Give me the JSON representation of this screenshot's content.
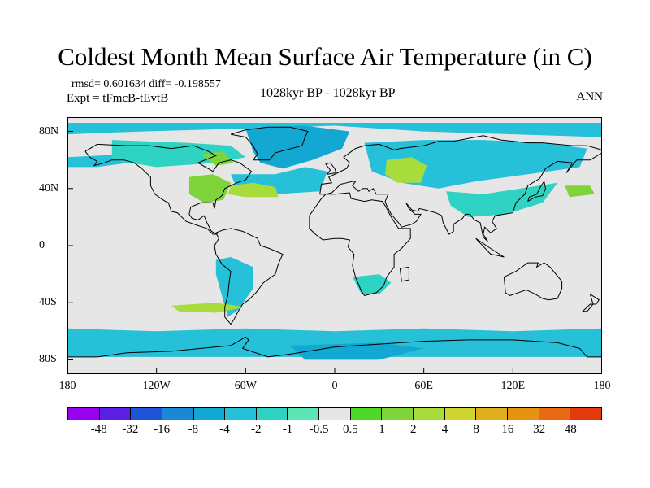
{
  "figure": {
    "title": "Coldest Month Mean Surface Air Temperature (in C)",
    "stats": "rmsd= 0.601634 diff= -0.198557",
    "experiment": "Expt = tFmcB-tEvtB",
    "period": "1028kyr BP - 1028kyr BP",
    "season": "ANN"
  },
  "map": {
    "projection": "cylindrical equidistant",
    "extent": {
      "lon_min": -180,
      "lon_max": 180,
      "lat_min": -90,
      "lat_max": 90
    },
    "background_color": "#e6e6e6",
    "coastline_color": "#000000",
    "lat_ticks": [
      {
        "lat": 80,
        "label": "80N"
      },
      {
        "lat": 40,
        "label": "40N"
      },
      {
        "lat": 0,
        "label": "0"
      },
      {
        "lat": -40,
        "label": "40S"
      },
      {
        "lat": -80,
        "label": "80S"
      }
    ],
    "lon_ticks": [
      {
        "lon": -180,
        "label": "180"
      },
      {
        "lon": -120,
        "label": "120W"
      },
      {
        "lon": -60,
        "label": "60W"
      },
      {
        "lon": 0,
        "label": "0"
      },
      {
        "lon": 60,
        "label": "60E"
      },
      {
        "lon": 120,
        "label": "120E"
      },
      {
        "lon": 180,
        "label": "180"
      }
    ],
    "anomaly_regions": [
      {
        "name": "arctic-cooling",
        "color": "#26c0d8",
        "poly": [
          [
            -180,
            78
          ],
          [
            -130,
            80
          ],
          [
            -60,
            82
          ],
          [
            0,
            84
          ],
          [
            60,
            80
          ],
          [
            120,
            78
          ],
          [
            180,
            76
          ],
          [
            180,
            86
          ],
          [
            -180,
            86
          ]
        ]
      },
      {
        "name": "north-pacific-cooling",
        "color": "#26c0d8",
        "poly": [
          [
            -180,
            62
          ],
          [
            -140,
            64
          ],
          [
            -120,
            66
          ],
          [
            -125,
            60
          ],
          [
            -160,
            55
          ],
          [
            -180,
            55
          ]
        ]
      },
      {
        "name": "north-america-cooling",
        "color": "#2fd3c4",
        "poly": [
          [
            -150,
            74
          ],
          [
            -100,
            72
          ],
          [
            -70,
            70
          ],
          [
            -60,
            62
          ],
          [
            -80,
            58
          ],
          [
            -120,
            55
          ],
          [
            -150,
            60
          ]
        ]
      },
      {
        "name": "greenland-atlantic-cooling",
        "color": "#12a8d2",
        "poly": [
          [
            -60,
            82
          ],
          [
            -20,
            84
          ],
          [
            10,
            80
          ],
          [
            5,
            68
          ],
          [
            -15,
            60
          ],
          [
            -35,
            54
          ],
          [
            -50,
            58
          ],
          [
            -55,
            66
          ]
        ]
      },
      {
        "name": "north-atlantic-cooling",
        "color": "#26c0d8",
        "poly": [
          [
            -70,
            50
          ],
          [
            -40,
            50
          ],
          [
            -20,
            55
          ],
          [
            -5,
            52
          ],
          [
            -10,
            38
          ],
          [
            -40,
            36
          ],
          [
            -65,
            38
          ]
        ]
      },
      {
        "name": "eurasia-cooling",
        "color": "#26c0d8",
        "poly": [
          [
            20,
            72
          ],
          [
            60,
            74
          ],
          [
            100,
            74
          ],
          [
            140,
            72
          ],
          [
            170,
            68
          ],
          [
            165,
            55
          ],
          [
            130,
            50
          ],
          [
            95,
            45
          ],
          [
            70,
            40
          ],
          [
            45,
            44
          ],
          [
            25,
            52
          ]
        ]
      },
      {
        "name": "east-asia-cooling",
        "color": "#2fd3c4",
        "poly": [
          [
            75,
            38
          ],
          [
            100,
            36
          ],
          [
            125,
            40
          ],
          [
            150,
            44
          ],
          [
            140,
            30
          ],
          [
            115,
            22
          ],
          [
            90,
            20
          ],
          [
            78,
            28
          ]
        ]
      },
      {
        "name": "south-america-cooling",
        "color": "#26c0d8",
        "poly": [
          [
            -80,
            -10
          ],
          [
            -70,
            -8
          ],
          [
            -55,
            -15
          ],
          [
            -55,
            -30
          ],
          [
            -65,
            -45
          ],
          [
            -72,
            -50
          ],
          [
            -76,
            -35
          ],
          [
            -80,
            -20
          ]
        ]
      },
      {
        "name": "africa-south-cooling",
        "color": "#2fd3c4",
        "poly": [
          [
            12,
            -22
          ],
          [
            30,
            -20
          ],
          [
            38,
            -26
          ],
          [
            30,
            -34
          ],
          [
            18,
            -34
          ]
        ]
      },
      {
        "name": "southern-ocean-cooling",
        "color": "#26c0d8",
        "poly": [
          [
            -180,
            -58
          ],
          [
            -120,
            -60
          ],
          [
            -60,
            -58
          ],
          [
            0,
            -60
          ],
          [
            60,
            -58
          ],
          [
            120,
            -60
          ],
          [
            180,
            -58
          ],
          [
            180,
            -78
          ],
          [
            -180,
            -78
          ]
        ]
      },
      {
        "name": "antarctic-cooling",
        "color": "#12a8d2",
        "poly": [
          [
            -30,
            -70
          ],
          [
            30,
            -68
          ],
          [
            60,
            -72
          ],
          [
            30,
            -80
          ],
          [
            -20,
            -80
          ]
        ]
      },
      {
        "name": "hudson-warming",
        "color": "#7ed43a",
        "poly": [
          [
            -90,
            64
          ],
          [
            -75,
            66
          ],
          [
            -68,
            58
          ],
          [
            -80,
            56
          ]
        ]
      },
      {
        "name": "eastern-us-warming",
        "color": "#7ed43a",
        "poly": [
          [
            -98,
            48
          ],
          [
            -82,
            50
          ],
          [
            -70,
            44
          ],
          [
            -75,
            32
          ],
          [
            -88,
            30
          ],
          [
            -98,
            36
          ]
        ]
      },
      {
        "name": "gulf-stream-warming",
        "color": "#a8dc3c",
        "poly": [
          [
            -70,
            42
          ],
          [
            -55,
            44
          ],
          [
            -40,
            41
          ],
          [
            -38,
            34
          ],
          [
            -60,
            34
          ],
          [
            -72,
            36
          ]
        ]
      },
      {
        "name": "caspian-warming",
        "color": "#a8dc3c",
        "poly": [
          [
            35,
            60
          ],
          [
            52,
            62
          ],
          [
            62,
            56
          ],
          [
            58,
            44
          ],
          [
            42,
            44
          ],
          [
            34,
            50
          ]
        ]
      },
      {
        "name": "kamchatka-warming",
        "color": "#7ed43a",
        "poly": [
          [
            155,
            42
          ],
          [
            172,
            42
          ],
          [
            175,
            36
          ],
          [
            158,
            34
          ]
        ]
      },
      {
        "name": "south-pacific-warming",
        "color": "#a8dc3c",
        "poly": [
          [
            -110,
            -42
          ],
          [
            -80,
            -40
          ],
          [
            -60,
            -43
          ],
          [
            -80,
            -47
          ],
          [
            -105,
            -46
          ]
        ]
      }
    ]
  },
  "colorbar": {
    "colors": [
      "#9900ee",
      "#5a1fe0",
      "#1f54d8",
      "#1b88d6",
      "#12a8d2",
      "#26c0d8",
      "#2fd3c4",
      "#5ce6b4",
      "#e6e6e6",
      "#4fd82a",
      "#7ed43a",
      "#a8dc3c",
      "#d0d42e",
      "#e0b01c",
      "#e89214",
      "#e86a12",
      "#e23a0c"
    ],
    "labels": [
      "-48",
      "-32",
      "-16",
      "-8",
      "-4",
      "-2",
      "-1",
      "-0.5",
      "0.5",
      "1",
      "2",
      "4",
      "8",
      "16",
      "32",
      "48"
    ]
  }
}
